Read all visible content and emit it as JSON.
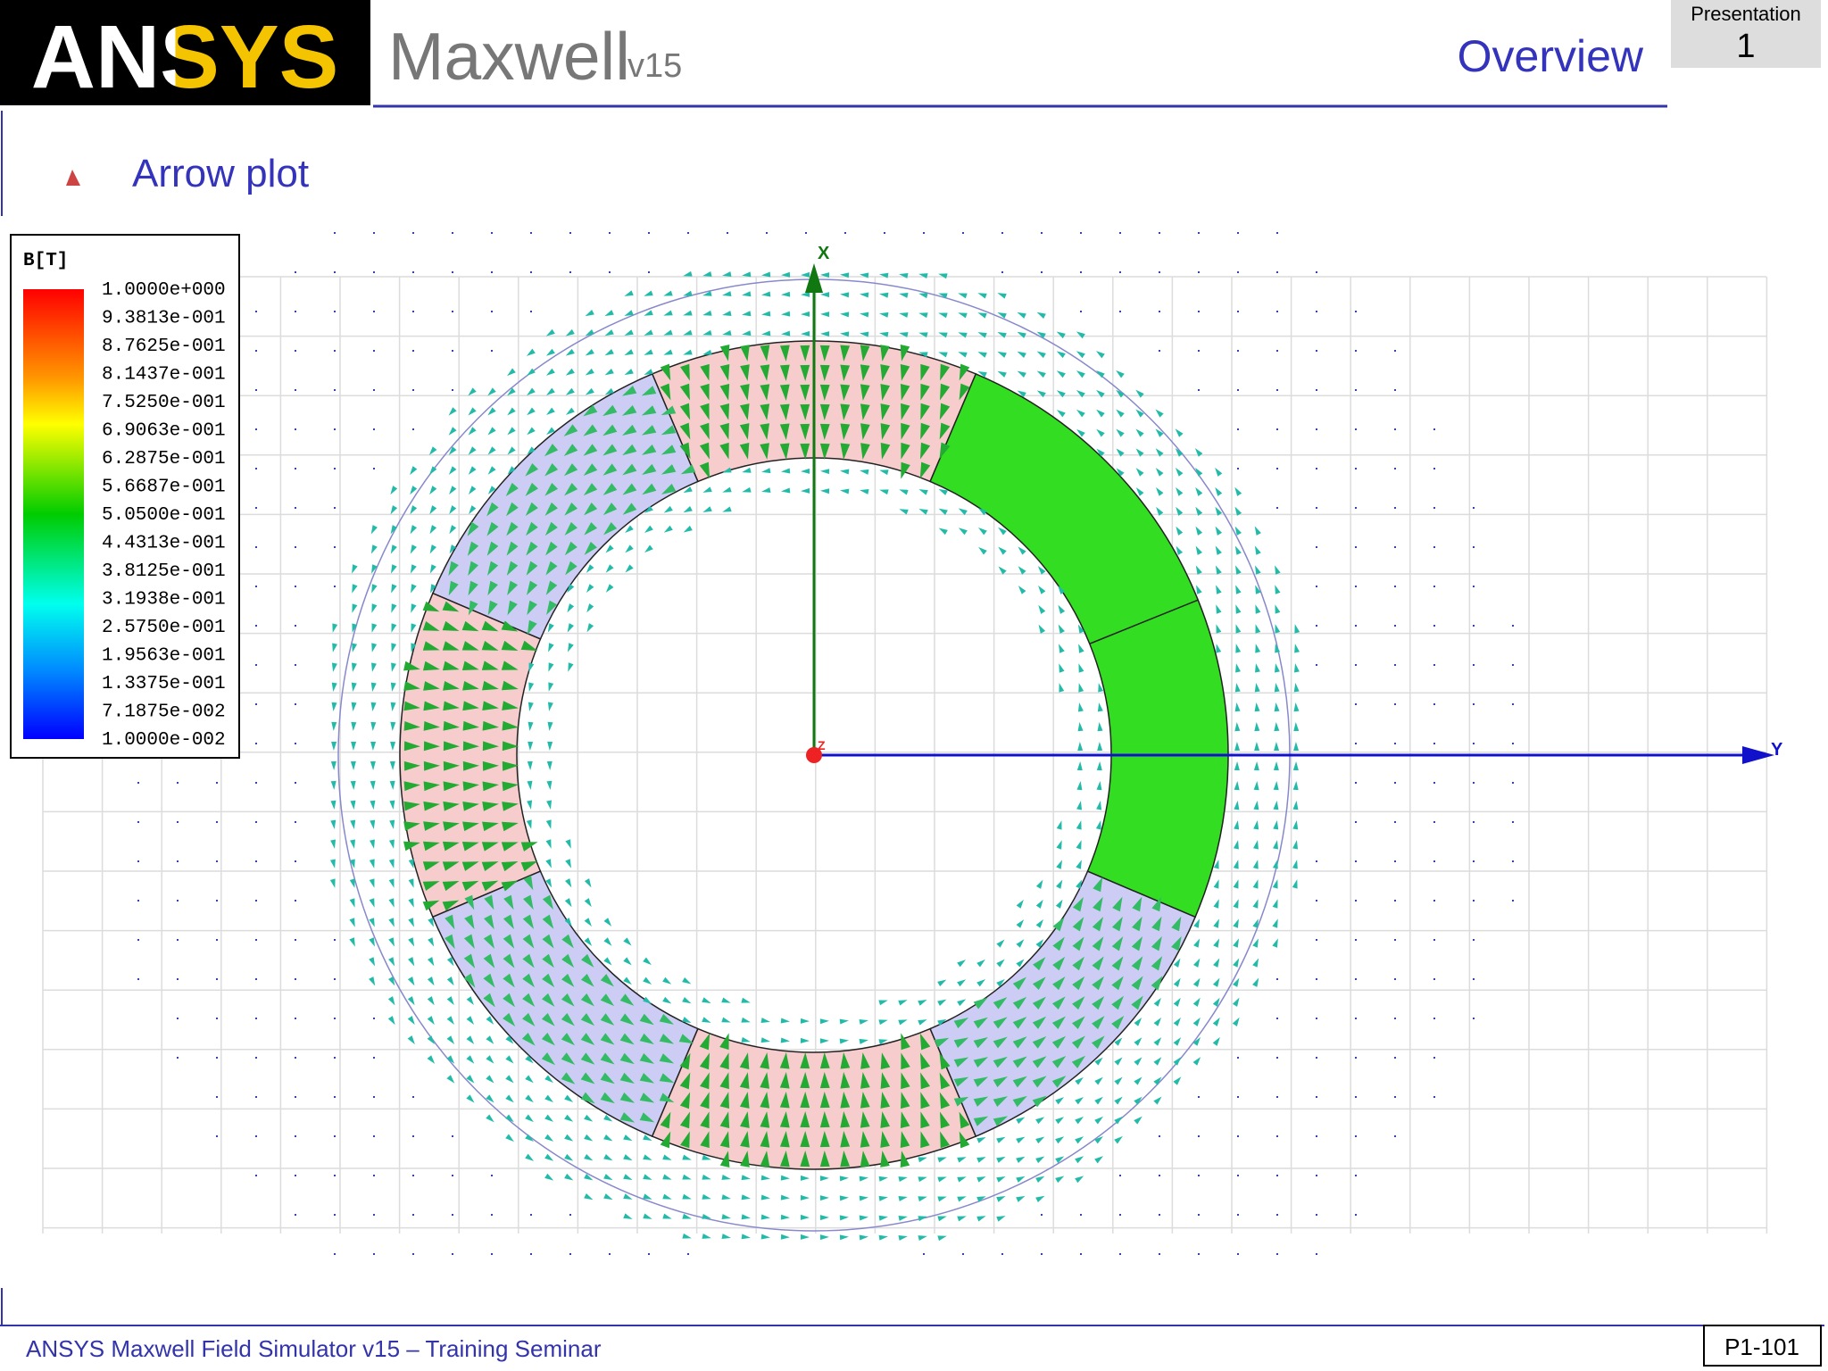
{
  "header": {
    "logo": "ANSYS",
    "product": "Maxwell",
    "version": "v15",
    "section": "Overview",
    "presentation_label": "Presentation",
    "presentation_number": "1"
  },
  "bullet": "Arrow plot",
  "legend": {
    "title": "B[T]",
    "labels": [
      "1.0000e+000",
      "9.3813e-001",
      "8.7625e-001",
      "8.1437e-001",
      "7.5250e-001",
      "6.9063e-001",
      "6.2875e-001",
      "5.6687e-001",
      "5.0500e-001",
      "4.4313e-001",
      "3.8125e-001",
      "3.1938e-001",
      "2.5750e-001",
      "1.9563e-001",
      "1.3375e-001",
      "7.1875e-002",
      "1.0000e-002"
    ]
  },
  "axes": {
    "x": "X",
    "y": "Y",
    "z": "Z"
  },
  "footer": {
    "text": "ANSYS Maxwell Field Simulator v15 – Training Seminar",
    "page": "P1-101"
  }
}
